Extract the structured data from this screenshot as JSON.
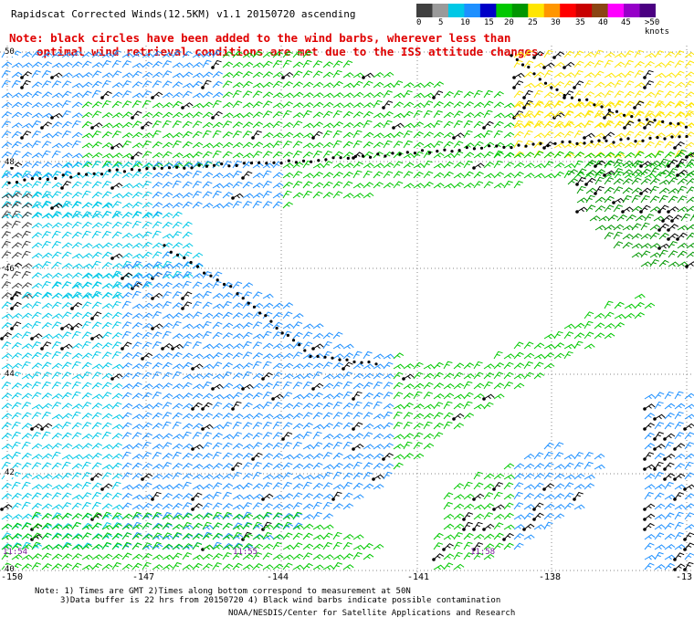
{
  "title": "Rapidscat Corrected Winds(12.5KM) v1.1 20150720 ascending",
  "note_line1": "Note: black circles have been added to the wind barbs, wherever less than",
  "note_line2": "optimal wind retrieval conditions are met due to the ISS attitude changes.",
  "legend": {
    "ticks": [
      "0",
      "5",
      "10",
      "15",
      "20",
      "25",
      "30",
      "35",
      "40",
      "45",
      ">50 knots"
    ],
    "colors": [
      "#404040",
      "#9a9a9a",
      "#00c8e6",
      "#1e90ff",
      "#0000c8",
      "#00c800",
      "#009600",
      "#ffe600",
      "#ff9600",
      "#ff0000",
      "#c80000",
      "#8b4513",
      "#ff00ff",
      "#9600c8",
      "#4b0082"
    ]
  },
  "lat_labels": [
    "50",
    "48",
    "46",
    "44",
    "42",
    "40"
  ],
  "lon_labels": [
    "-150",
    "-147",
    "-144",
    "-141",
    "-138",
    "-13"
  ],
  "time_labels": [
    "11:54",
    "11:55",
    "11:58"
  ],
  "footer": {
    "line1": "Note: 1) Times are GMT 2)Times along bottom correspond to measurement at 50N",
    "line2": "3)Data buffer is 22 hrs from 20150720 4) Black wind barbs indicate possible contamination",
    "line3": "NOAA/NESDIS/Center for Satellite Applications and Research"
  }
}
